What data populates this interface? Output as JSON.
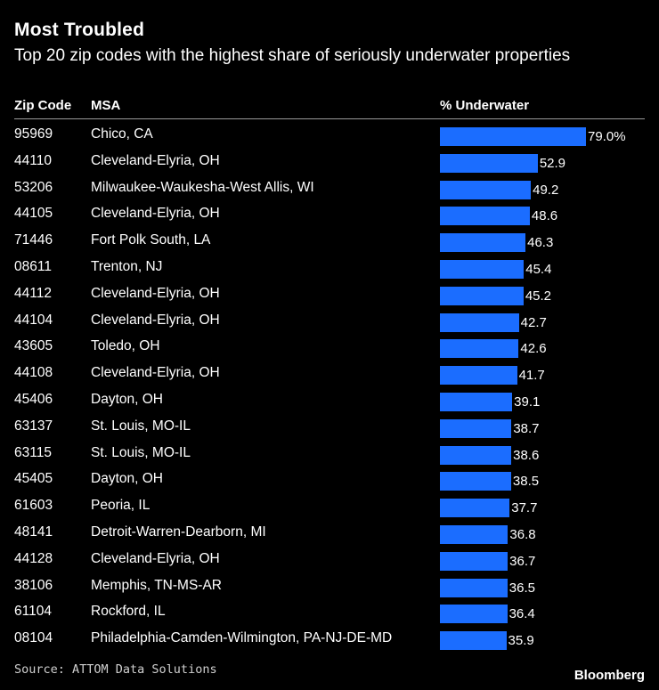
{
  "title": "Most Troubled",
  "subtitle": "Top 20 zip codes with the highest share of seriously underwater properties",
  "headers": {
    "zip": "Zip Code",
    "msa": "MSA",
    "pct": "% Underwater"
  },
  "source": "Source: ATTOM Data Solutions",
  "brand": "Bloomberg",
  "chart_data": {
    "type": "bar",
    "orientation": "horizontal",
    "title": "Most Troubled",
    "subtitle": "Top 20 zip codes with the highest share of seriously underwater properties",
    "value_label": "% Underwater",
    "xlim": [
      0,
      79.0
    ],
    "bar_color": "#1b6dff",
    "rows": [
      {
        "zip": "95969",
        "msa": "Chico, CA",
        "value": 79.0,
        "label": "79.0%"
      },
      {
        "zip": "44110",
        "msa": "Cleveland-Elyria, OH",
        "value": 52.9,
        "label": "52.9"
      },
      {
        "zip": "53206",
        "msa": "Milwaukee-Waukesha-West Allis, WI",
        "value": 49.2,
        "label": "49.2"
      },
      {
        "zip": "44105",
        "msa": "Cleveland-Elyria, OH",
        "value": 48.6,
        "label": "48.6"
      },
      {
        "zip": "71446",
        "msa": "Fort Polk South, LA",
        "value": 46.3,
        "label": "46.3"
      },
      {
        "zip": "08611",
        "msa": "Trenton, NJ",
        "value": 45.4,
        "label": "45.4"
      },
      {
        "zip": "44112",
        "msa": "Cleveland-Elyria, OH",
        "value": 45.2,
        "label": "45.2"
      },
      {
        "zip": "44104",
        "msa": "Cleveland-Elyria, OH",
        "value": 42.7,
        "label": "42.7"
      },
      {
        "zip": "43605",
        "msa": "Toledo, OH",
        "value": 42.6,
        "label": "42.6"
      },
      {
        "zip": "44108",
        "msa": "Cleveland-Elyria, OH",
        "value": 41.7,
        "label": "41.7"
      },
      {
        "zip": "45406",
        "msa": "Dayton, OH",
        "value": 39.1,
        "label": "39.1"
      },
      {
        "zip": "63137",
        "msa": "St. Louis, MO-IL",
        "value": 38.7,
        "label": "38.7"
      },
      {
        "zip": "63115",
        "msa": "St. Louis, MO-IL",
        "value": 38.6,
        "label": "38.6"
      },
      {
        "zip": "45405",
        "msa": "Dayton, OH",
        "value": 38.5,
        "label": "38.5"
      },
      {
        "zip": "61603",
        "msa": "Peoria, IL",
        "value": 37.7,
        "label": "37.7"
      },
      {
        "zip": "48141",
        "msa": "Detroit-Warren-Dearborn, MI",
        "value": 36.8,
        "label": "36.8"
      },
      {
        "zip": "44128",
        "msa": "Cleveland-Elyria, OH",
        "value": 36.7,
        "label": "36.7"
      },
      {
        "zip": "38106",
        "msa": "Memphis, TN-MS-AR",
        "value": 36.5,
        "label": "36.5"
      },
      {
        "zip": "61104",
        "msa": "Rockford, IL",
        "value": 36.4,
        "label": "36.4"
      },
      {
        "zip": "08104",
        "msa": "Philadelphia-Camden-Wilmington, PA-NJ-DE-MD",
        "value": 35.9,
        "label": "35.9"
      }
    ]
  }
}
